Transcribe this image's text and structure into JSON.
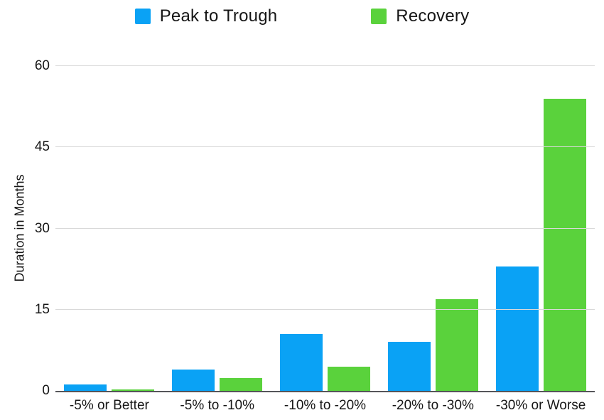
{
  "chart_data": {
    "type": "bar",
    "title": "",
    "categories": [
      "-5% or Better",
      "-5% to -10%",
      "-10% to -20%",
      "-20% to -30%",
      "-30% or Worse"
    ],
    "series": [
      {
        "name": "Peak to Trough",
        "color": "#0aa2f5",
        "values": [
          1.2,
          4,
          10.5,
          9,
          23
        ]
      },
      {
        "name": "Recovery",
        "color": "#5ad23c",
        "values": [
          0.3,
          2.3,
          4.5,
          17,
          54
        ]
      }
    ],
    "xlabel": "",
    "ylabel": "Duration in Months",
    "ylim": [
      0,
      60
    ],
    "yticks": [
      0,
      15,
      30,
      45,
      60
    ],
    "grid": true,
    "legend_position": "top",
    "colors": {
      "gridline": "#d9d9d9",
      "axis_line": "#55555a",
      "text": "#161616",
      "background": "#ffffff"
    }
  }
}
